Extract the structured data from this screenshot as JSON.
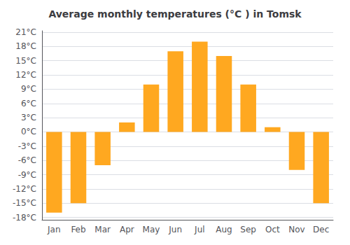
{
  "chart_data": {
    "type": "bar",
    "title": "Average monthly temperatures (°C ) in Tomsk",
    "categories": [
      "Jan",
      "Feb",
      "Mar",
      "Apr",
      "May",
      "Jun",
      "Jul",
      "Aug",
      "Sep",
      "Oct",
      "Nov",
      "Dec"
    ],
    "values": [
      -17,
      -15,
      -7,
      2,
      10,
      17,
      19,
      16,
      10,
      1,
      -8,
      -15
    ],
    "color": "#FFA820",
    "ylim": [
      -18.5,
      21.3
    ],
    "yticks": [
      {
        "value": -18,
        "label": "-18°C"
      },
      {
        "value": -15,
        "label": "-15°C"
      },
      {
        "value": -12,
        "label": "-12°C"
      },
      {
        "value": -9,
        "label": "-9°C"
      },
      {
        "value": -6,
        "label": "-6°C"
      },
      {
        "value": -3,
        "label": "-3°C"
      },
      {
        "value": 0,
        "label": "0°C"
      },
      {
        "value": 3,
        "label": "3°C"
      },
      {
        "value": 6,
        "label": "6°C"
      },
      {
        "value": 9,
        "label": "9°C"
      },
      {
        "value": 12,
        "label": "12°C"
      },
      {
        "value": 15,
        "label": "15°C"
      },
      {
        "value": 18,
        "label": "18°C"
      },
      {
        "value": 21,
        "label": "21°C"
      }
    ],
    "grid": true
  }
}
